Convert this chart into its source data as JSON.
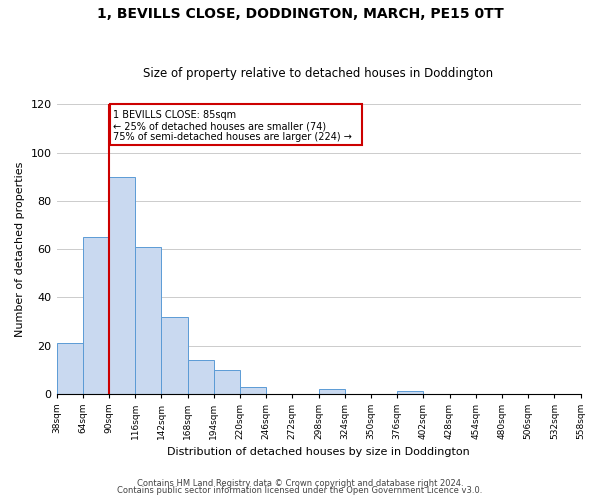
{
  "title": "1, BEVILLS CLOSE, DODDINGTON, MARCH, PE15 0TT",
  "subtitle": "Size of property relative to detached houses in Doddington",
  "xlabel": "Distribution of detached houses by size in Doddington",
  "ylabel": "Number of detached properties",
  "bar_edges": [
    38,
    64,
    90,
    116,
    142,
    168,
    194,
    220,
    246,
    272,
    298,
    324,
    350,
    376,
    402,
    428,
    454,
    480,
    506,
    532,
    558
  ],
  "bar_heights": [
    21,
    65,
    90,
    61,
    32,
    14,
    10,
    3,
    0,
    0,
    2,
    0,
    0,
    1,
    0,
    0,
    0,
    0,
    0,
    0
  ],
  "bar_color": "#c9d9f0",
  "bar_edgecolor": "#5b9bd5",
  "marker_line_color": "#cc0000",
  "ylim": [
    0,
    120
  ],
  "yticks": [
    0,
    20,
    40,
    60,
    80,
    100,
    120
  ],
  "annotation_box_edgecolor": "#cc0000",
  "annotation_line1": "1 BEVILLS CLOSE: 85sqm",
  "annotation_line2": "← 25% of detached houses are smaller (74)",
  "annotation_line3": "75% of semi-detached houses are larger (224) →",
  "footer_line1": "Contains HM Land Registry data © Crown copyright and database right 2024.",
  "footer_line2": "Contains public sector information licensed under the Open Government Licence v3.0.",
  "background_color": "#ffffff",
  "grid_color": "#cccccc"
}
